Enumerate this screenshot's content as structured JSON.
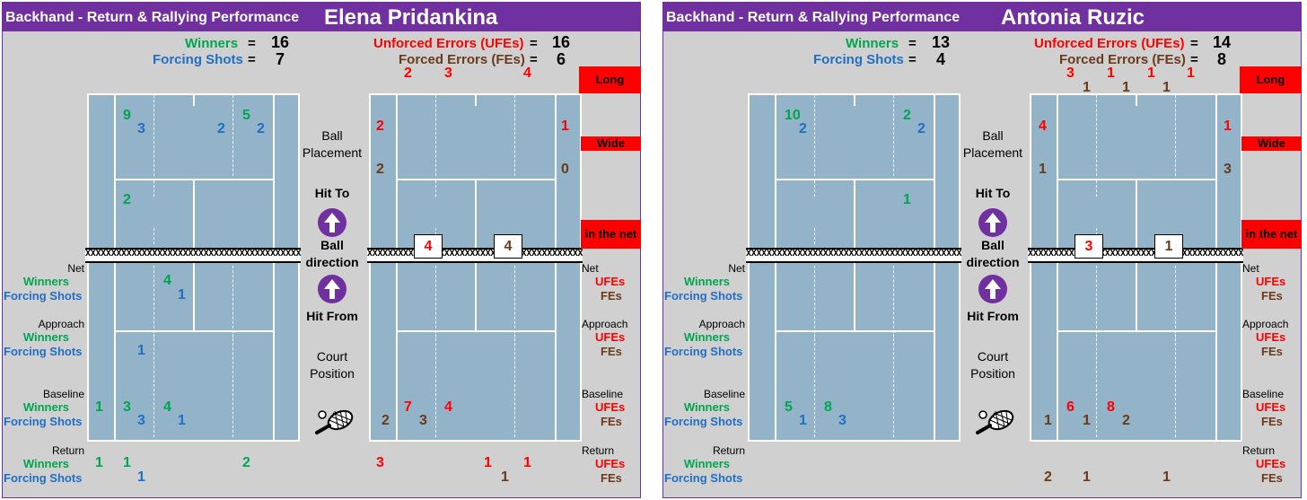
{
  "colors": {
    "purple": "#7030a0",
    "court": "#93b3c8",
    "winner": "#00a550",
    "forcing": "#1f6fc5",
    "ufe": "#ff0000",
    "fe": "#6b3a1a"
  },
  "icons": {
    "arrow": "up-arrow-icon",
    "racket": "tennis-racket-icon"
  },
  "chart_data": [
    {
      "type": "table",
      "subtitle": "Backhand - Return & Rallying Performance",
      "player": "Elena Pridankina",
      "totals": {
        "winners": 16,
        "forcing_shots": 7,
        "ufes": 16,
        "fes": 6
      },
      "error_direction": {
        "long_ufe": [
          2,
          3,
          4
        ],
        "wide_left": {
          "ufe": 2,
          "fe": 2
        },
        "wide_right": {
          "ufe": 1,
          "fe": 0
        },
        "net_ufe": 4,
        "net_fe": 4
      },
      "placement": {
        "deep_left": {
          "w": 9,
          "f": 3
        },
        "deep_right": {
          "w": 5,
          "f": 2,
          "f2": 2
        },
        "service": {
          "w": 2
        }
      },
      "hit_from": {
        "net": {
          "w": 4,
          "f": 1
        },
        "approach": {
          "f": 1
        },
        "baseline": {
          "w": [
            1,
            3,
            4
          ],
          "f": [
            3,
            1
          ]
        },
        "return": {
          "w": [
            1,
            1,
            2
          ],
          "f": [
            1
          ]
        }
      },
      "error_from": {
        "baseline": {
          "ufe": [
            7,
            4
          ],
          "fe": [
            2,
            3
          ]
        },
        "return": {
          "ufe": [
            3,
            1,
            1
          ],
          "fe": [
            1
          ]
        }
      }
    },
    {
      "type": "table",
      "subtitle": "Backhand - Return & Rallying Performance",
      "player": "Antonia Ruzic",
      "totals": {
        "winners": 13,
        "forcing_shots": 4,
        "ufes": 14,
        "fes": 8
      },
      "error_direction": {
        "long_ufe": [
          3,
          1,
          1,
          1
        ],
        "long_fe": [
          1,
          1,
          1
        ],
        "wide_left": {
          "ufe": 4,
          "fe": 1
        },
        "wide_right": {
          "ufe": 1,
          "fe": 3
        },
        "net_ufe": 3,
        "net_fe": 1
      },
      "placement": {
        "deep_left": {
          "w": 10,
          "f": 2
        },
        "deep_right": {
          "w": 2,
          "f": 2
        },
        "service": {
          "w": 1
        }
      },
      "hit_from": {
        "baseline": {
          "w": [
            5,
            8
          ],
          "f": [
            1,
            3
          ]
        }
      },
      "error_from": {
        "baseline": {
          "ufe": [
            6,
            8
          ],
          "fe": [
            1,
            1,
            2
          ]
        },
        "return": {
          "fe": [
            2,
            1,
            1
          ]
        }
      }
    }
  ],
  "labels": {
    "subtitle": "Backhand - Return & Rallying Performance",
    "winners": "Winners",
    "forcing": "Forcing Shots",
    "ufe_full": "Unforced Errors (UFEs)",
    "fe_full": "Forced Errors (FEs)",
    "eq": "=",
    "long": "Long",
    "wide": "Wide",
    "in_net": "in the net",
    "net": "Net",
    "approach": "Approach",
    "baseline": "Baseline",
    "return": "Return",
    "ufes": "UFEs",
    "fes": "FEs",
    "ball": "Ball",
    "placement": "Placement",
    "hit_to": "Hit To",
    "ball_dir1": "Ball",
    "ball_dir2": "direction",
    "hit_from": "Hit From",
    "court": "Court",
    "position": "Position",
    "netx": "XXXXXXXXXXXXXXXXXXXXXXXXXXXXXXXXXXXXXXXXXXXXXXXXXXXXXXXXXXXXXXXXXXXXXX"
  },
  "p1": {
    "name": "Elena Pridankina",
    "w": "16",
    "f": "7",
    "u": "16",
    "e": "6",
    "nums": [
      [
        "9",
        "c-g",
        137,
        120
      ],
      [
        "3",
        "c-b",
        153,
        135
      ],
      [
        "2",
        "c-b",
        242,
        135
      ],
      [
        "5",
        "c-g",
        270,
        120
      ],
      [
        "2",
        "c-b",
        286,
        135
      ],
      [
        "2",
        "c-g",
        137,
        214
      ],
      [
        "4",
        "c-g",
        182,
        304
      ],
      [
        "1",
        "c-b",
        198,
        320
      ],
      [
        "1",
        "c-b",
        153,
        382
      ],
      [
        "1",
        "c-g",
        106,
        445
      ],
      [
        "3",
        "c-g",
        137,
        445
      ],
      [
        "3",
        "c-b",
        153,
        460
      ],
      [
        "4",
        "c-g",
        182,
        445
      ],
      [
        "1",
        "c-b",
        198,
        460
      ],
      [
        "1",
        "c-g",
        106,
        507
      ],
      [
        "1",
        "c-g",
        137,
        507
      ],
      [
        "1",
        "c-b",
        153,
        523
      ],
      [
        "2",
        "c-g",
        270,
        507
      ],
      [
        "2",
        "c-r",
        450,
        73
      ],
      [
        "3",
        "c-r",
        495,
        73
      ],
      [
        "4",
        "c-r",
        583,
        73
      ],
      [
        "2",
        "c-r",
        419,
        132
      ],
      [
        "2",
        "c-br",
        419,
        180
      ],
      [
        "1",
        "c-r",
        625,
        132
      ],
      [
        "0",
        "c-br",
        625,
        180
      ],
      [
        "7",
        "c-r",
        450,
        445
      ],
      [
        "4",
        "c-r",
        495,
        445
      ],
      [
        "2",
        "c-br",
        425,
        460
      ],
      [
        "3",
        "c-br",
        467,
        460
      ],
      [
        "3",
        "c-r",
        419,
        507
      ],
      [
        "1",
        "c-r",
        539,
        507
      ],
      [
        "1",
        "c-r",
        583,
        507
      ],
      [
        "1",
        "c-br",
        558,
        523
      ]
    ],
    "box1": "4",
    "box2": "4",
    "box2c": "c-br"
  },
  "p2": {
    "name": "Antonia Ruzic",
    "w": "13",
    "f": "4",
    "u": "14",
    "e": "8",
    "nums": [
      [
        "10",
        "c-g",
        874,
        120
      ],
      [
        "2",
        "c-b",
        890,
        135
      ],
      [
        "2",
        "c-g",
        1006,
        120
      ],
      [
        "2",
        "c-b",
        1022,
        135
      ],
      [
        "1",
        "c-g",
        1006,
        214
      ],
      [
        "5",
        "c-g",
        874,
        445
      ],
      [
        "1",
        "c-b",
        890,
        460
      ],
      [
        "8",
        "c-g",
        918,
        445
      ],
      [
        "3",
        "c-b",
        934,
        460
      ],
      [
        "3",
        "c-r",
        1188,
        73
      ],
      [
        "1",
        "c-br",
        1206,
        89
      ],
      [
        "1",
        "c-r",
        1233,
        73
      ],
      [
        "1",
        "c-br",
        1250,
        89
      ],
      [
        "1",
        "c-r",
        1278,
        73
      ],
      [
        "1",
        "c-br",
        1295,
        89
      ],
      [
        "1",
        "c-r",
        1322,
        73
      ],
      [
        "4",
        "c-r",
        1157,
        132
      ],
      [
        "1",
        "c-br",
        1157,
        180
      ],
      [
        "1",
        "c-r",
        1363,
        132
      ],
      [
        "3",
        "c-br",
        1363,
        180
      ],
      [
        "6",
        "c-r",
        1188,
        445
      ],
      [
        "8",
        "c-r",
        1233,
        445
      ],
      [
        "1",
        "c-br",
        1163,
        460
      ],
      [
        "1",
        "c-br",
        1206,
        460
      ],
      [
        "2",
        "c-br",
        1250,
        460
      ],
      [
        "2",
        "c-br",
        1163,
        523
      ],
      [
        "1",
        "c-br",
        1206,
        523
      ],
      [
        "1",
        "c-br",
        1295,
        523
      ]
    ],
    "box1": "3",
    "box2": "1",
    "box2c": "c-br"
  }
}
